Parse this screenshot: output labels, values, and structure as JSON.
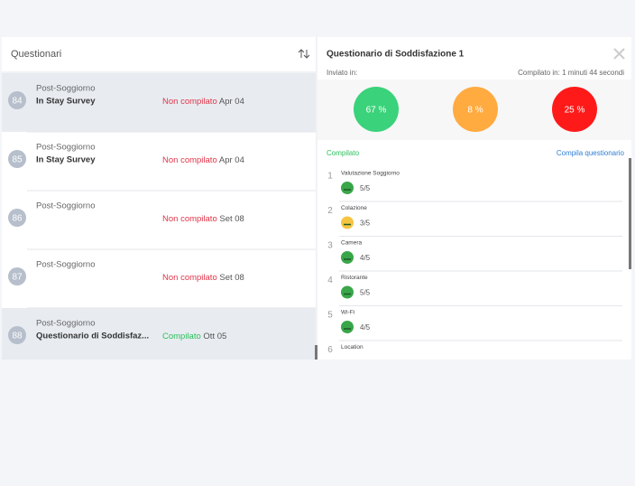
{
  "list": {
    "title": "Questionari",
    "items": [
      {
        "number": "84",
        "type": "Post-Soggiorno",
        "name": "In Stay Survey",
        "status": "Non compilato",
        "status_color": "#e0364a",
        "date": "Apr 04",
        "selected": true
      },
      {
        "number": "85",
        "type": "Post-Soggiorno",
        "name": "In Stay Survey",
        "status": "Non compilato",
        "status_color": "#e0364a",
        "date": "Apr 04",
        "selected": false
      },
      {
        "number": "86",
        "type": "Post-Soggiorno",
        "status": "Non compilato",
        "status_color": "#e0364a",
        "date": "Set 08",
        "selected": false
      },
      {
        "number": "87",
        "type": "Post-Soggiorno",
        "status": "Non compilato",
        "status_color": "#e0364a",
        "date": "Set 08",
        "selected": false
      },
      {
        "number": "88",
        "type": "Post-Soggiorno",
        "name": "Questionario di Soddisfaz...",
        "status": "Compilato",
        "status_color": "#2ec05c",
        "date": "Ott 05",
        "selected": true
      }
    ]
  },
  "detail": {
    "title": "Questionario di Soddisfazione 1",
    "sent_label": "Inviato in:",
    "duration": "Compilato in: 1 minuti 44 secondi",
    "stats": [
      {
        "label": "67 %",
        "color": "#3ad27a"
      },
      {
        "label": "8 %",
        "color": "#ffab40"
      },
      {
        "label": "25 %",
        "color": "#ff1a1a"
      }
    ],
    "status": "Compilato",
    "action": "Compila questionario",
    "questions": [
      {
        "number": "1",
        "label": "Valutazione Soggiorno",
        "score": "5/5",
        "icon_color": "#3aa64a"
      },
      {
        "number": "2",
        "label": "Colazione",
        "score": "3/5",
        "icon_color": "#f5c542"
      },
      {
        "number": "3",
        "label": "Camera",
        "score": "4/5",
        "icon_color": "#3aa64a"
      },
      {
        "number": "4",
        "label": "Ristorante",
        "score": "5/5",
        "icon_color": "#3aa64a"
      },
      {
        "number": "5",
        "label": "Wi-Fi",
        "score": "4/5",
        "icon_color": "#3aa64a"
      },
      {
        "number": "6",
        "label": "Location"
      }
    ]
  }
}
